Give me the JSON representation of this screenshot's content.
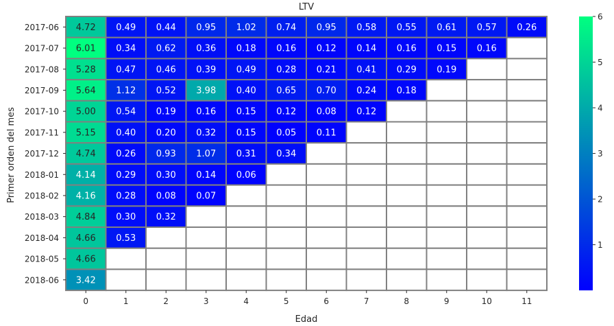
{
  "chart_data": {
    "type": "heatmap",
    "title": "LTV",
    "xlabel": "Edad",
    "ylabel": "Primer orden del mes",
    "x_categories": [
      "0",
      "1",
      "2",
      "3",
      "4",
      "5",
      "6",
      "7",
      "8",
      "9",
      "10",
      "11"
    ],
    "y_categories": [
      "2017-06",
      "2017-07",
      "2017-08",
      "2017-09",
      "2017-10",
      "2017-11",
      "2017-12",
      "2018-01",
      "2018-02",
      "2018-03",
      "2018-04",
      "2018-05",
      "2018-06"
    ],
    "values": [
      [
        4.72,
        0.49,
        0.44,
        0.95,
        1.02,
        0.74,
        0.95,
        0.58,
        0.55,
        0.61,
        0.57,
        0.26
      ],
      [
        6.01,
        0.34,
        0.62,
        0.36,
        0.18,
        0.16,
        0.12,
        0.14,
        0.16,
        0.15,
        0.16,
        null
      ],
      [
        5.28,
        0.47,
        0.46,
        0.39,
        0.49,
        0.28,
        0.21,
        0.41,
        0.29,
        0.19,
        null,
        null
      ],
      [
        5.64,
        1.12,
        0.52,
        3.98,
        0.4,
        0.65,
        0.7,
        0.24,
        0.18,
        null,
        null,
        null
      ],
      [
        5.0,
        0.54,
        0.19,
        0.16,
        0.15,
        0.12,
        0.08,
        0.12,
        null,
        null,
        null,
        null
      ],
      [
        5.15,
        0.4,
        0.2,
        0.32,
        0.15,
        0.05,
        0.11,
        null,
        null,
        null,
        null,
        null
      ],
      [
        4.74,
        0.26,
        0.93,
        1.07,
        0.31,
        0.34,
        null,
        null,
        null,
        null,
        null,
        null
      ],
      [
        4.14,
        0.29,
        0.3,
        0.14,
        0.06,
        null,
        null,
        null,
        null,
        null,
        null,
        null
      ],
      [
        4.16,
        0.28,
        0.08,
        0.07,
        null,
        null,
        null,
        null,
        null,
        null,
        null,
        null
      ],
      [
        4.84,
        0.3,
        0.32,
        null,
        null,
        null,
        null,
        null,
        null,
        null,
        null,
        null
      ],
      [
        4.66,
        0.53,
        null,
        null,
        null,
        null,
        null,
        null,
        null,
        null,
        null,
        null
      ],
      [
        4.66,
        null,
        null,
        null,
        null,
        null,
        null,
        null,
        null,
        null,
        null,
        null
      ],
      [
        3.42,
        null,
        null,
        null,
        null,
        null,
        null,
        null,
        null,
        null,
        null,
        null
      ]
    ],
    "value_format": "2 decimals",
    "colormap": {
      "name": "winter",
      "low": "#0000ff",
      "high": "#00ff80"
    },
    "colorbar": {
      "range": [
        0,
        6
      ],
      "ticks": [
        "1",
        "2",
        "3",
        "4",
        "5",
        "6"
      ],
      "placement": "right"
    },
    "cell_border_color": "#808080",
    "grid": false
  }
}
